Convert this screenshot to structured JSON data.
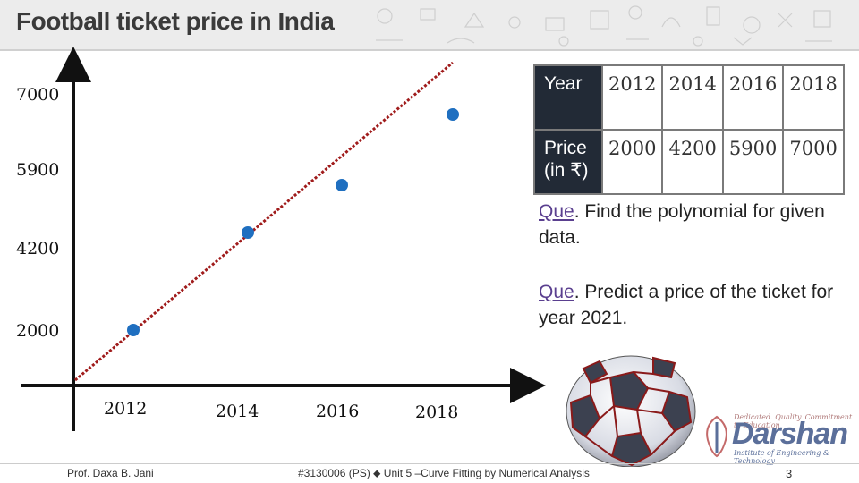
{
  "slide": {
    "title": "Football ticket price in India",
    "page_number": "3",
    "author": "Prof. Daxa B. Jani",
    "course": "#3130006 (PS) ⬥ Unit 5 –Curve Fitting by Numerical Analysis"
  },
  "table": {
    "year_label": "Year",
    "price_label": "Price (in ₹)",
    "years": [
      "2012",
      "2014",
      "2016",
      "2018"
    ],
    "prices": [
      "2000",
      "4200",
      "5900",
      "7000"
    ]
  },
  "questions": [
    {
      "kw": "Que",
      "text": ". Find the polynomial for given data."
    },
    {
      "kw": "Que",
      "text": ". Predict a price of the ticket for year 2021."
    }
  ],
  "logo": {
    "tagline": "Dedicated. Quality. Commitment to Education",
    "name": "Darshan",
    "sub": "Institute of Engineering & Technology"
  },
  "chart_data": {
    "type": "scatter",
    "x_ticks": [
      "2012",
      "2014",
      "2016",
      "2018"
    ],
    "y_ticks": [
      "2000",
      "4200",
      "5900",
      "7000"
    ],
    "points": [
      {
        "x": 2012,
        "y": 2000
      },
      {
        "x": 2014,
        "y": 4200
      },
      {
        "x": 2016,
        "y": 5900
      },
      {
        "x": 2018,
        "y": 7000
      }
    ],
    "fit_line": {
      "x": [
        2011,
        2018
      ],
      "y": [
        950,
        7700
      ]
    },
    "point_color": "#1f6fc0",
    "line_color": "#a01c1c"
  }
}
